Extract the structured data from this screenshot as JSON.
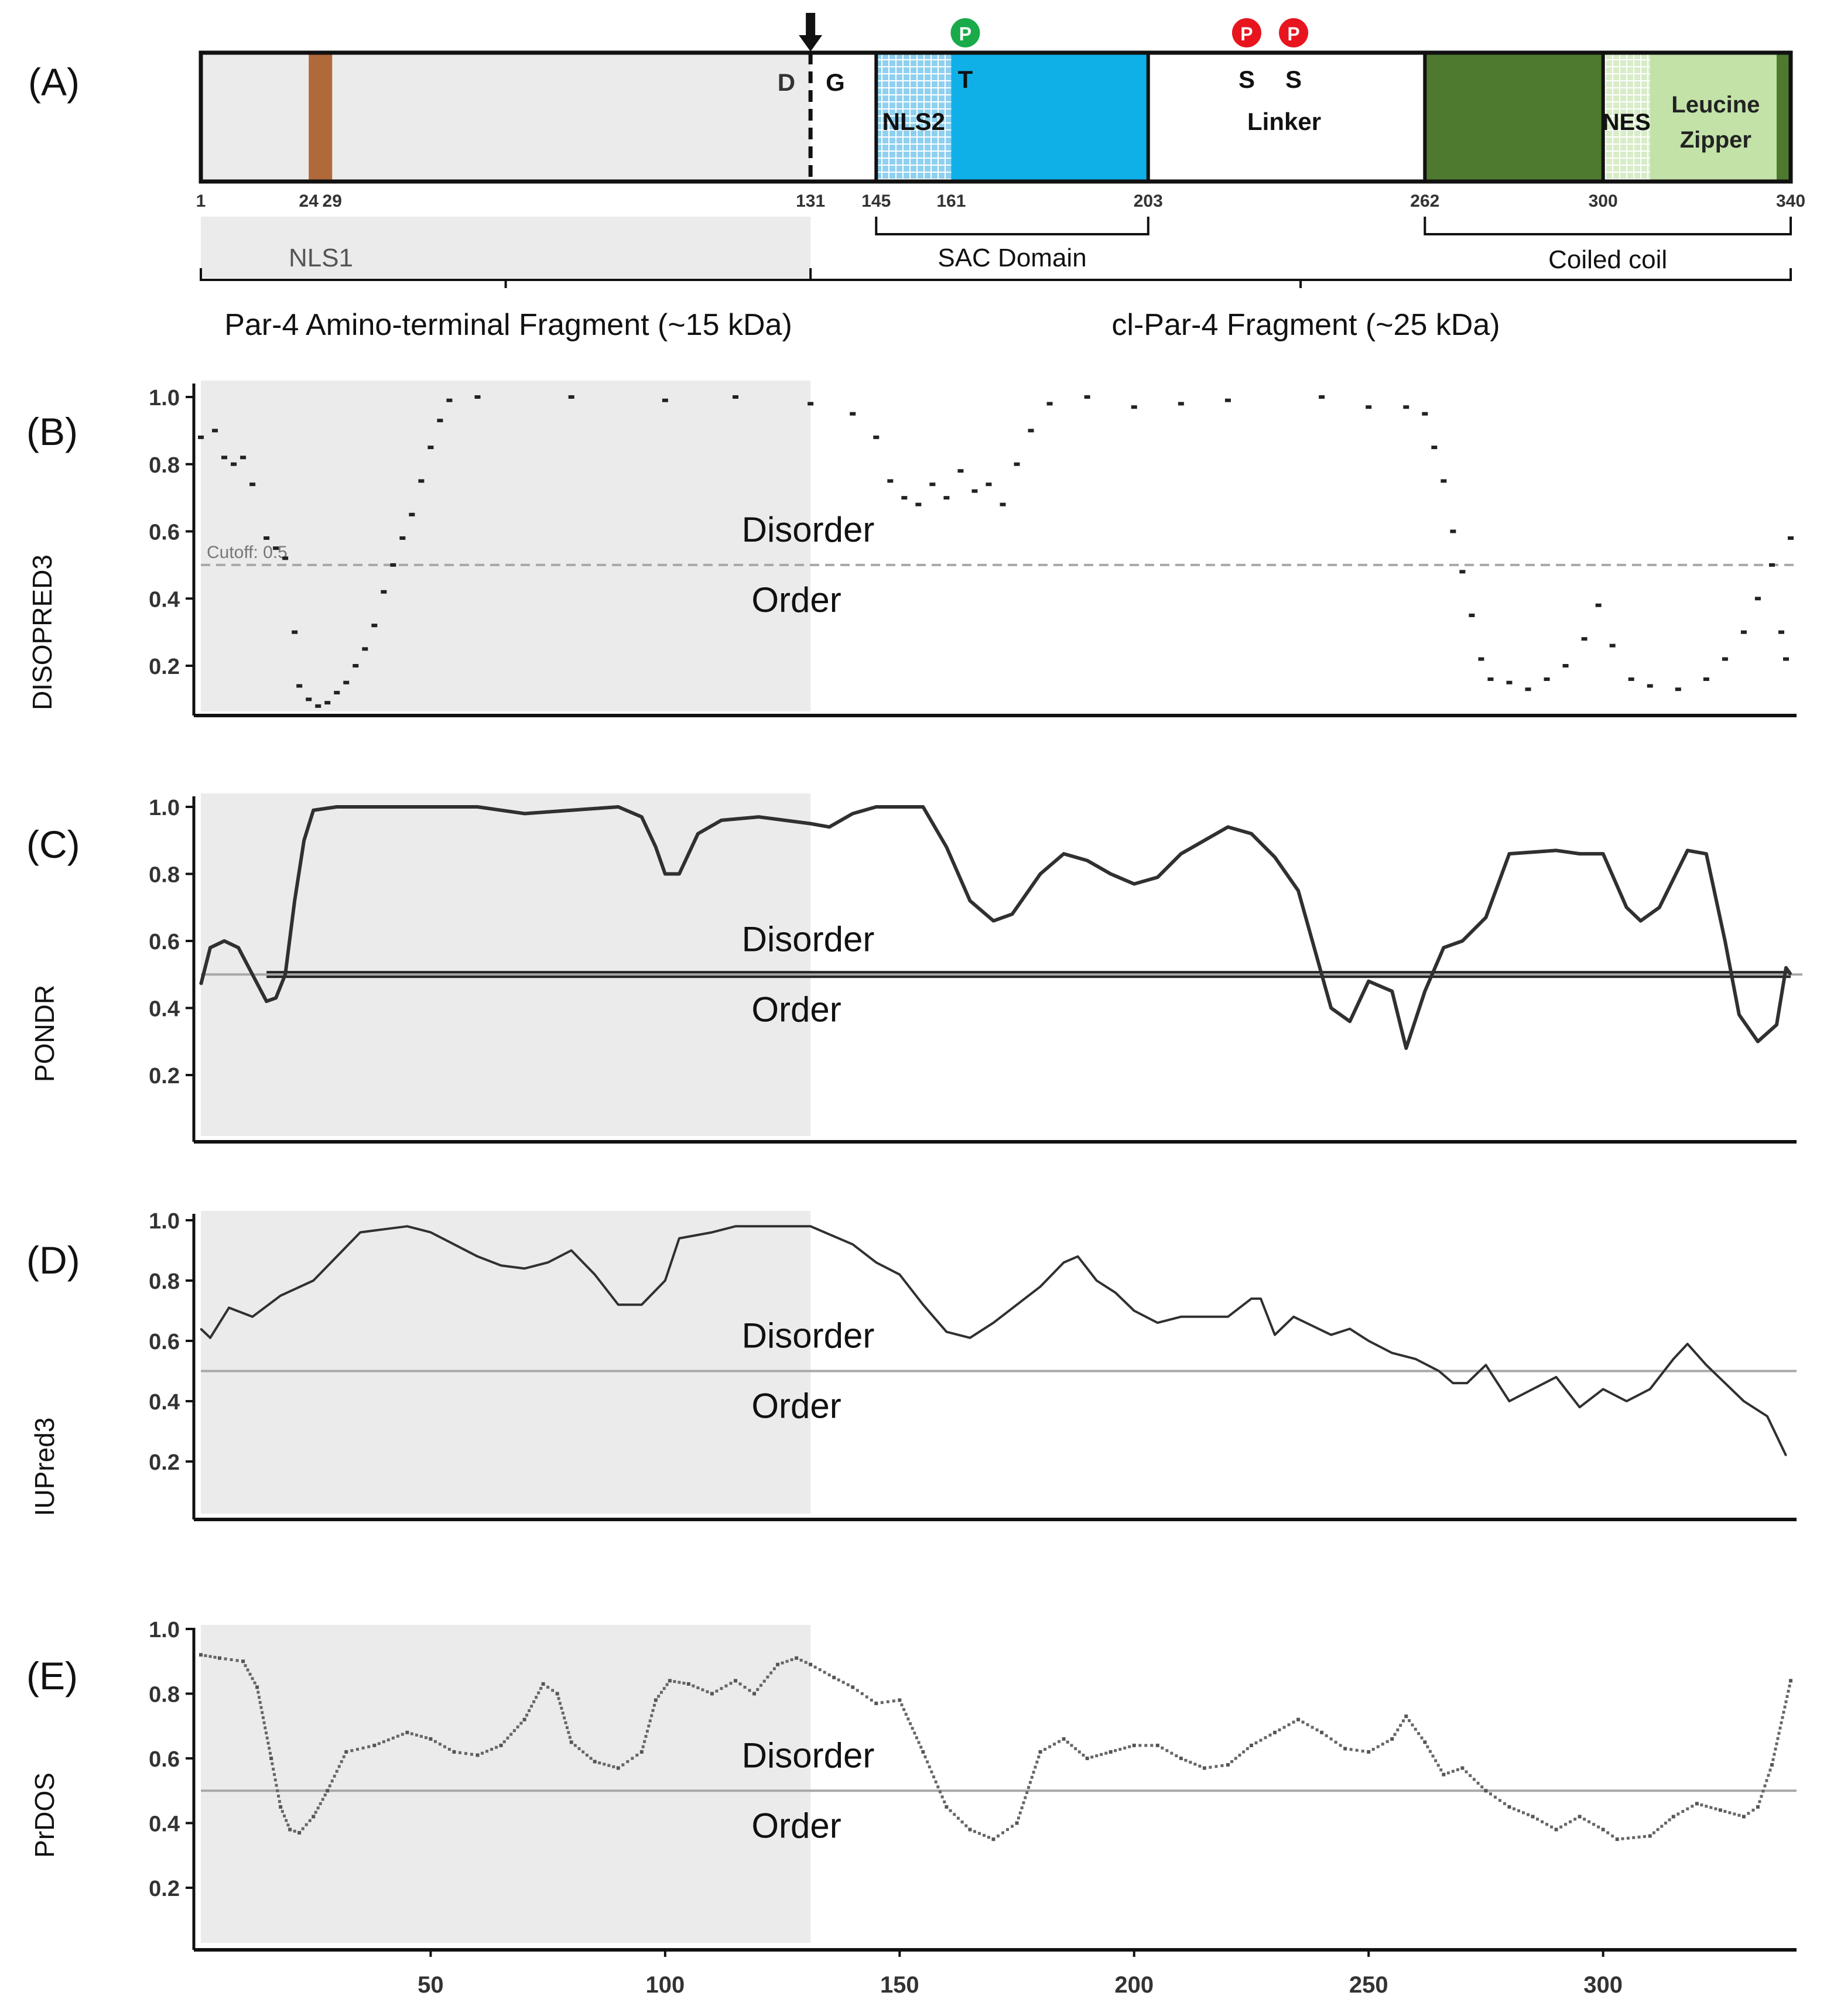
{
  "colors": {
    "shade": "#ebebeb",
    "brown": "#b06a3a",
    "blue": "#0fb0e8",
    "darkGreen": "#4e7a30",
    "lightGreen": "#c2e2a8",
    "phosGreen": "#1aaa4a",
    "phosRed": "#e8141e",
    "line": "#303030",
    "ref": "#a8a8a8"
  },
  "panelA": {
    "label": "(A)",
    "cleavage": {
      "left": "D",
      "right": "G"
    },
    "domains": {
      "nls2": "NLS2",
      "t": "T",
      "s1": "S",
      "s2": "S",
      "linker": "Linker",
      "nes": "NES",
      "lz1": "Leucine",
      "lz2": "Zipper"
    },
    "phosphoLabel": "P",
    "ticks": [
      {
        "v": "1",
        "pos": 1
      },
      {
        "v": "24",
        "pos": 24
      },
      {
        "v": "29",
        "pos": 29
      },
      {
        "v": "131",
        "pos": 131
      },
      {
        "v": "145",
        "pos": 145
      },
      {
        "v": "161",
        "pos": 161
      },
      {
        "v": "203",
        "pos": 203
      },
      {
        "v": "262",
        "pos": 262
      },
      {
        "v": "300",
        "pos": 300
      },
      {
        "v": "340",
        "pos": 340
      }
    ],
    "nls1": "NLS1",
    "sac": "SAC Domain",
    "coiled": "Coiled coil",
    "frag1": "Par-4 Amino-terminal Fragment (~15 kDa)",
    "frag2": "cl-Par-4 Fragment (~25 kDa)"
  },
  "chart_data": [
    {
      "panel": "(B)",
      "type": "scatter",
      "ylabel": "DISOPRED3",
      "cutoff_label": "Cutoff: 0.5",
      "cutoff": 0.5,
      "above": "Disorder",
      "below": "Order",
      "yticks": [
        "1.0",
        "0.8",
        "0.6",
        "0.4",
        "0.2"
      ],
      "ylim": [
        0.05,
        1.03
      ],
      "xlim": [
        1,
        340
      ],
      "points": [
        [
          1,
          0.88
        ],
        [
          4,
          0.9
        ],
        [
          6,
          0.82
        ],
        [
          8,
          0.8
        ],
        [
          10,
          0.82
        ],
        [
          12,
          0.74
        ],
        [
          15,
          0.58
        ],
        [
          17,
          0.55
        ],
        [
          19,
          0.52
        ],
        [
          21,
          0.3
        ],
        [
          22,
          0.14
        ],
        [
          24,
          0.1
        ],
        [
          26,
          0.08
        ],
        [
          28,
          0.09
        ],
        [
          30,
          0.12
        ],
        [
          32,
          0.15
        ],
        [
          34,
          0.2
        ],
        [
          36,
          0.25
        ],
        [
          38,
          0.32
        ],
        [
          40,
          0.42
        ],
        [
          42,
          0.5
        ],
        [
          44,
          0.58
        ],
        [
          46,
          0.65
        ],
        [
          48,
          0.75
        ],
        [
          50,
          0.85
        ],
        [
          52,
          0.93
        ],
        [
          54,
          0.99
        ],
        [
          60,
          1.0
        ],
        [
          80,
          1.0
        ],
        [
          100,
          0.99
        ],
        [
          115,
          1.0
        ],
        [
          131,
          0.98
        ],
        [
          140,
          0.95
        ],
        [
          145,
          0.88
        ],
        [
          148,
          0.75
        ],
        [
          151,
          0.7
        ],
        [
          154,
          0.68
        ],
        [
          157,
          0.74
        ],
        [
          160,
          0.7
        ],
        [
          163,
          0.78
        ],
        [
          166,
          0.72
        ],
        [
          169,
          0.74
        ],
        [
          172,
          0.68
        ],
        [
          175,
          0.8
        ],
        [
          178,
          0.9
        ],
        [
          182,
          0.98
        ],
        [
          190,
          1.0
        ],
        [
          200,
          0.97
        ],
        [
          210,
          0.98
        ],
        [
          220,
          0.99
        ],
        [
          240,
          1.0
        ],
        [
          250,
          0.97
        ],
        [
          258,
          0.97
        ],
        [
          262,
          0.95
        ],
        [
          264,
          0.85
        ],
        [
          266,
          0.75
        ],
        [
          268,
          0.6
        ],
        [
          270,
          0.48
        ],
        [
          272,
          0.35
        ],
        [
          274,
          0.22
        ],
        [
          276,
          0.16
        ],
        [
          280,
          0.15
        ],
        [
          284,
          0.13
        ],
        [
          288,
          0.16
        ],
        [
          292,
          0.2
        ],
        [
          296,
          0.28
        ],
        [
          299,
          0.38
        ],
        [
          302,
          0.26
        ],
        [
          306,
          0.16
        ],
        [
          310,
          0.14
        ],
        [
          316,
          0.13
        ],
        [
          322,
          0.16
        ],
        [
          326,
          0.22
        ],
        [
          330,
          0.3
        ],
        [
          333,
          0.4
        ],
        [
          336,
          0.5
        ],
        [
          338,
          0.3
        ],
        [
          339,
          0.22
        ],
        [
          340,
          0.58
        ]
      ]
    },
    {
      "panel": "(C)",
      "type": "line",
      "ylabel": "PONDR",
      "cutoff": 0.5,
      "above": "Disorder",
      "below": "Order",
      "yticks": [
        "1.0",
        "0.8",
        "0.6",
        "0.4",
        "0.2"
      ],
      "ylim": [
        0.05,
        1.03
      ],
      "xlim": [
        1,
        340
      ],
      "points": [
        [
          1,
          0.47
        ],
        [
          3,
          0.58
        ],
        [
          6,
          0.6
        ],
        [
          9,
          0.58
        ],
        [
          12,
          0.5
        ],
        [
          15,
          0.42
        ],
        [
          17,
          0.43
        ],
        [
          19,
          0.5
        ],
        [
          21,
          0.72
        ],
        [
          23,
          0.9
        ],
        [
          25,
          0.99
        ],
        [
          30,
          1.0
        ],
        [
          60,
          1.0
        ],
        [
          70,
          0.98
        ],
        [
          90,
          1.0
        ],
        [
          95,
          0.97
        ],
        [
          98,
          0.88
        ],
        [
          100,
          0.8
        ],
        [
          103,
          0.8
        ],
        [
          107,
          0.92
        ],
        [
          112,
          0.96
        ],
        [
          120,
          0.97
        ],
        [
          131,
          0.95
        ],
        [
          135,
          0.94
        ],
        [
          140,
          0.98
        ],
        [
          145,
          1.0
        ],
        [
          155,
          1.0
        ],
        [
          160,
          0.88
        ],
        [
          165,
          0.72
        ],
        [
          170,
          0.66
        ],
        [
          174,
          0.68
        ],
        [
          180,
          0.8
        ],
        [
          185,
          0.86
        ],
        [
          190,
          0.84
        ],
        [
          195,
          0.8
        ],
        [
          200,
          0.77
        ],
        [
          205,
          0.79
        ],
        [
          210,
          0.86
        ],
        [
          215,
          0.9
        ],
        [
          220,
          0.94
        ],
        [
          225,
          0.92
        ],
        [
          230,
          0.85
        ],
        [
          235,
          0.75
        ],
        [
          240,
          0.5
        ],
        [
          242,
          0.4
        ],
        [
          246,
          0.36
        ],
        [
          250,
          0.48
        ],
        [
          255,
          0.45
        ],
        [
          258,
          0.28
        ],
        [
          262,
          0.45
        ],
        [
          266,
          0.58
        ],
        [
          270,
          0.6
        ],
        [
          275,
          0.67
        ],
        [
          280,
          0.86
        ],
        [
          290,
          0.87
        ],
        [
          295,
          0.86
        ],
        [
          300,
          0.86
        ],
        [
          305,
          0.7
        ],
        [
          308,
          0.66
        ],
        [
          312,
          0.7
        ],
        [
          318,
          0.87
        ],
        [
          322,
          0.86
        ],
        [
          326,
          0.6
        ],
        [
          329,
          0.38
        ],
        [
          333,
          0.3
        ],
        [
          337,
          0.35
        ],
        [
          339,
          0.52
        ],
        [
          340,
          0.5
        ]
      ]
    },
    {
      "panel": "(D)",
      "type": "line",
      "ylabel": "IUPred3",
      "cutoff": 0.5,
      "above": "Disorder",
      "below": "Order",
      "yticks": [
        "1.0",
        "0.8",
        "0.6",
        "0.4",
        "0.2"
      ],
      "ylim": [
        0.1,
        1.03
      ],
      "xlim": [
        1,
        340
      ],
      "points": [
        [
          1,
          0.64
        ],
        [
          3,
          0.61
        ],
        [
          7,
          0.71
        ],
        [
          12,
          0.68
        ],
        [
          18,
          0.75
        ],
        [
          25,
          0.8
        ],
        [
          30,
          0.88
        ],
        [
          35,
          0.96
        ],
        [
          40,
          0.97
        ],
        [
          45,
          0.98
        ],
        [
          50,
          0.96
        ],
        [
          55,
          0.92
        ],
        [
          60,
          0.88
        ],
        [
          65,
          0.85
        ],
        [
          70,
          0.84
        ],
        [
          75,
          0.86
        ],
        [
          80,
          0.9
        ],
        [
          85,
          0.82
        ],
        [
          90,
          0.72
        ],
        [
          95,
          0.72
        ],
        [
          100,
          0.8
        ],
        [
          103,
          0.94
        ],
        [
          110,
          0.96
        ],
        [
          115,
          0.98
        ],
        [
          120,
          0.98
        ],
        [
          131,
          0.98
        ],
        [
          140,
          0.92
        ],
        [
          145,
          0.86
        ],
        [
          150,
          0.82
        ],
        [
          155,
          0.72
        ],
        [
          160,
          0.63
        ],
        [
          165,
          0.61
        ],
        [
          170,
          0.66
        ],
        [
          175,
          0.72
        ],
        [
          180,
          0.78
        ],
        [
          185,
          0.86
        ],
        [
          188,
          0.88
        ],
        [
          192,
          0.8
        ],
        [
          196,
          0.76
        ],
        [
          200,
          0.7
        ],
        [
          205,
          0.66
        ],
        [
          210,
          0.68
        ],
        [
          215,
          0.68
        ],
        [
          220,
          0.68
        ],
        [
          225,
          0.74
        ],
        [
          227,
          0.74
        ],
        [
          230,
          0.62
        ],
        [
          234,
          0.68
        ],
        [
          238,
          0.65
        ],
        [
          242,
          0.62
        ],
        [
          246,
          0.64
        ],
        [
          250,
          0.6
        ],
        [
          255,
          0.56
        ],
        [
          260,
          0.54
        ],
        [
          265,
          0.5
        ],
        [
          268,
          0.46
        ],
        [
          271,
          0.46
        ],
        [
          275,
          0.52
        ],
        [
          280,
          0.4
        ],
        [
          285,
          0.44
        ],
        [
          290,
          0.48
        ],
        [
          295,
          0.38
        ],
        [
          300,
          0.44
        ],
        [
          305,
          0.4
        ],
        [
          310,
          0.44
        ],
        [
          315,
          0.54
        ],
        [
          318,
          0.59
        ],
        [
          322,
          0.52
        ],
        [
          326,
          0.46
        ],
        [
          330,
          0.4
        ],
        [
          335,
          0.35
        ],
        [
          339,
          0.22
        ]
      ]
    },
    {
      "panel": "(E)",
      "type": "scatter",
      "ylabel": "PrDOS",
      "cutoff": 0.5,
      "above": "Disorder",
      "below": "Order",
      "yticks": [
        "1.0",
        "0.8",
        "0.6",
        "0.4",
        "0.2"
      ],
      "ylim": [
        0.05,
        1.02
      ],
      "xlim": [
        1,
        340
      ],
      "xticks": [
        "50",
        "100",
        "150",
        "200",
        "250",
        "300"
      ],
      "xtickvals": [
        50,
        100,
        150,
        200,
        250,
        300
      ],
      "points": [
        [
          1,
          0.92
        ],
        [
          5,
          0.91
        ],
        [
          10,
          0.9
        ],
        [
          13,
          0.82
        ],
        [
          16,
          0.6
        ],
        [
          18,
          0.45
        ],
        [
          20,
          0.38
        ],
        [
          22,
          0.37
        ],
        [
          25,
          0.42
        ],
        [
          28,
          0.5
        ],
        [
          32,
          0.62
        ],
        [
          38,
          0.64
        ],
        [
          45,
          0.68
        ],
        [
          50,
          0.66
        ],
        [
          55,
          0.62
        ],
        [
          60,
          0.61
        ],
        [
          65,
          0.64
        ],
        [
          70,
          0.72
        ],
        [
          74,
          0.83
        ],
        [
          77,
          0.8
        ],
        [
          80,
          0.65
        ],
        [
          85,
          0.59
        ],
        [
          90,
          0.57
        ],
        [
          95,
          0.62
        ],
        [
          98,
          0.78
        ],
        [
          101,
          0.84
        ],
        [
          105,
          0.83
        ],
        [
          110,
          0.8
        ],
        [
          115,
          0.84
        ],
        [
          119,
          0.8
        ],
        [
          124,
          0.89
        ],
        [
          128,
          0.91
        ],
        [
          131,
          0.89
        ],
        [
          136,
          0.85
        ],
        [
          140,
          0.82
        ],
        [
          145,
          0.77
        ],
        [
          150,
          0.78
        ],
        [
          155,
          0.62
        ],
        [
          160,
          0.45
        ],
        [
          165,
          0.38
        ],
        [
          170,
          0.35
        ],
        [
          175,
          0.4
        ],
        [
          180,
          0.62
        ],
        [
          185,
          0.66
        ],
        [
          190,
          0.6
        ],
        [
          195,
          0.62
        ],
        [
          200,
          0.64
        ],
        [
          205,
          0.64
        ],
        [
          210,
          0.6
        ],
        [
          215,
          0.57
        ],
        [
          220,
          0.58
        ],
        [
          225,
          0.64
        ],
        [
          230,
          0.68
        ],
        [
          235,
          0.72
        ],
        [
          240,
          0.68
        ],
        [
          245,
          0.63
        ],
        [
          250,
          0.62
        ],
        [
          255,
          0.66
        ],
        [
          258,
          0.73
        ],
        [
          262,
          0.65
        ],
        [
          266,
          0.55
        ],
        [
          270,
          0.57
        ],
        [
          275,
          0.5
        ],
        [
          280,
          0.45
        ],
        [
          285,
          0.42
        ],
        [
          290,
          0.38
        ],
        [
          295,
          0.42
        ],
        [
          300,
          0.38
        ],
        [
          303,
          0.35
        ],
        [
          310,
          0.36
        ],
        [
          315,
          0.42
        ],
        [
          320,
          0.46
        ],
        [
          325,
          0.44
        ],
        [
          330,
          0.42
        ],
        [
          333,
          0.45
        ],
        [
          336,
          0.58
        ],
        [
          340,
          0.84
        ]
      ]
    }
  ]
}
